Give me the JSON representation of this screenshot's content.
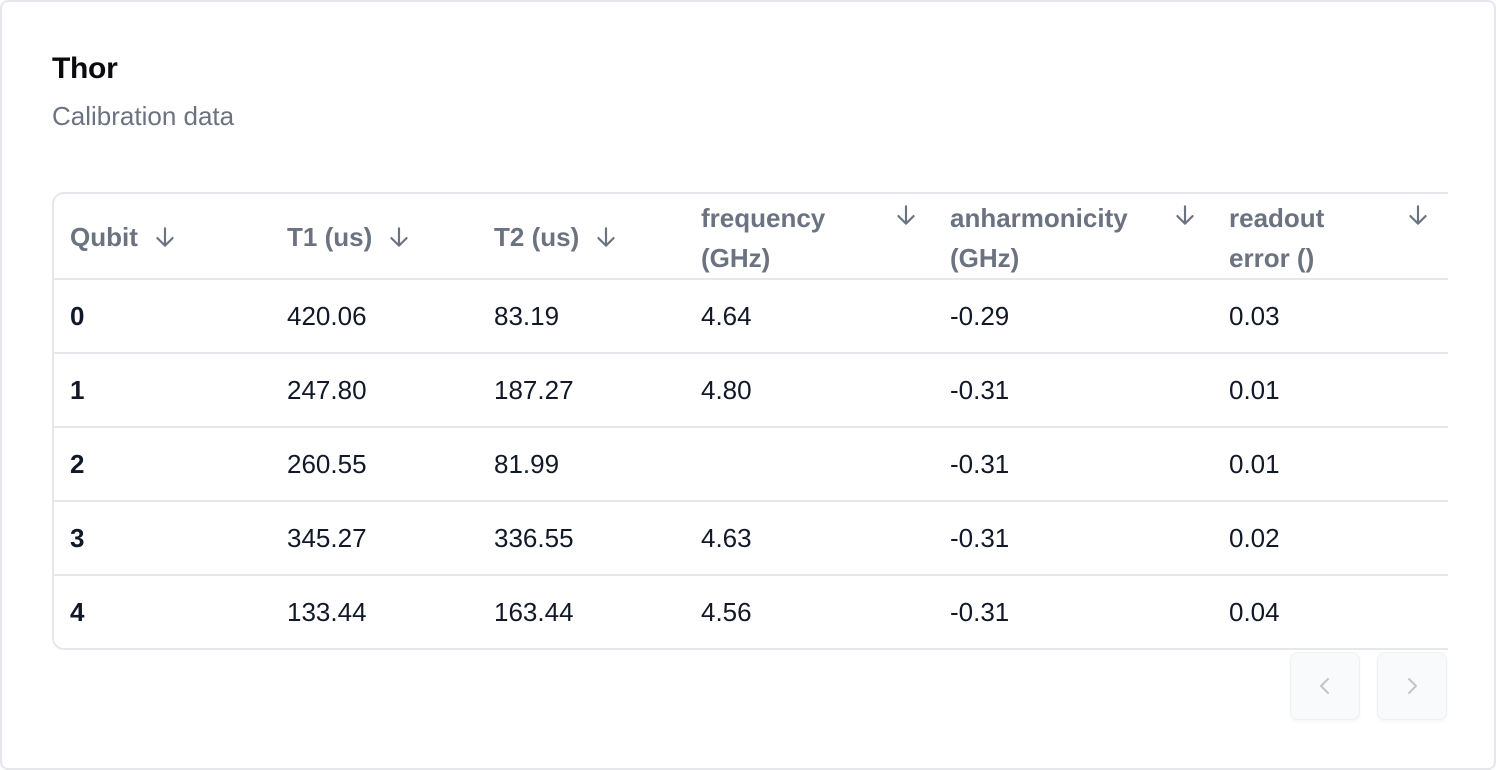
{
  "card": {
    "title": "Thor",
    "subtitle": "Calibration data"
  },
  "table": {
    "columns": [
      {
        "line1": "Qubit",
        "line2": "",
        "sort_icon": "arrow-down-icon"
      },
      {
        "line1": "T1 (us)",
        "line2": "",
        "sort_icon": "arrow-down-icon"
      },
      {
        "line1": "T2 (us)",
        "line2": "",
        "sort_icon": "arrow-down-icon"
      },
      {
        "line1": "frequency",
        "line2": "(GHz)",
        "sort_icon": "arrow-down-icon"
      },
      {
        "line1": "anharmonicity",
        "line2": "(GHz)",
        "sort_icon": "arrow-down-icon"
      },
      {
        "line1": "readout",
        "line2": "error ()",
        "sort_icon": "arrow-down-icon"
      }
    ],
    "rows": [
      [
        "0",
        "420.06",
        "83.19",
        "4.64",
        "-0.29",
        "0.03"
      ],
      [
        "1",
        "247.80",
        "187.27",
        "4.80",
        "-0.31",
        "0.01"
      ],
      [
        "2",
        "260.55",
        "81.99",
        "",
        "-0.31",
        "0.01"
      ],
      [
        "3",
        "345.27",
        "336.55",
        "4.63",
        "-0.31",
        "0.02"
      ],
      [
        "4",
        "133.44",
        "163.44",
        "4.56",
        "-0.31",
        "0.04"
      ]
    ]
  },
  "pagination": {
    "prev_icon": "chevron-left-icon",
    "next_icon": "chevron-right-icon",
    "prev_disabled": true,
    "next_disabled": true
  },
  "colors": {
    "header_text": "#6b7280",
    "body_text": "#111827",
    "border": "#e5e7eb",
    "disabled_icon": "#c0c4cc"
  }
}
